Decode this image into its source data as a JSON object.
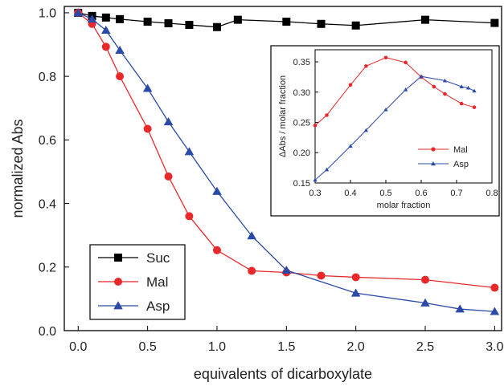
{
  "chart_data": [
    {
      "type": "line",
      "title": "",
      "xlabel": "equivalents of dicarboxylate",
      "ylabel": "normalized Abs",
      "xlim": [
        -0.1,
        3.05
      ],
      "ylim": [
        0.0,
        1.02
      ],
      "xticks": [
        "0.0",
        "0.5",
        "1.0",
        "1.5",
        "2.0",
        "2.5",
        "3.0"
      ],
      "yticks": [
        "0.0",
        "0.2",
        "0.4",
        "0.6",
        "0.8",
        "1.0"
      ],
      "grid": false,
      "legend_position": "bottom-left",
      "series": [
        {
          "name": "Suc",
          "color": "#000000",
          "marker": "square",
          "x": [
            0.0,
            0.1,
            0.2,
            0.3,
            0.5,
            0.65,
            0.8,
            1.0,
            1.15,
            1.5,
            1.75,
            2.0,
            2.5,
            3.0
          ],
          "y": [
            1.0,
            0.99,
            0.985,
            0.98,
            0.972,
            0.967,
            0.962,
            0.955,
            0.978,
            0.972,
            0.965,
            0.96,
            0.978,
            0.968
          ]
        },
        {
          "name": "Mal",
          "color": "#e8282a",
          "marker": "circle",
          "x": [
            0.0,
            0.1,
            0.2,
            0.3,
            0.5,
            0.65,
            0.8,
            1.0,
            1.25,
            1.5,
            1.75,
            2.0,
            2.5,
            3.0
          ],
          "y": [
            1.0,
            0.965,
            0.893,
            0.8,
            0.635,
            0.485,
            0.36,
            0.253,
            0.188,
            0.183,
            0.173,
            0.168,
            0.16,
            0.135
          ]
        },
        {
          "name": "Asp",
          "color": "#2b4aa8",
          "marker": "triangle",
          "x": [
            0.0,
            0.1,
            0.2,
            0.3,
            0.5,
            0.65,
            0.8,
            1.0,
            1.25,
            1.5,
            2.0,
            2.5,
            2.75,
            3.0
          ],
          "y": [
            1.0,
            0.98,
            0.945,
            0.882,
            0.762,
            0.657,
            0.563,
            0.438,
            0.298,
            0.19,
            0.118,
            0.087,
            0.068,
            0.06
          ]
        }
      ]
    },
    {
      "type": "line",
      "title": "",
      "xlabel": "molar fraction",
      "ylabel": "ΔAbs / molar fraction",
      "xlim": [
        0.3,
        0.8
      ],
      "ylim": [
        0.15,
        0.37
      ],
      "xticks": [
        "0.3",
        "0.4",
        "0.5",
        "0.6",
        "0.7",
        "0.8"
      ],
      "yticks": [
        "0.15",
        "0.20",
        "0.25",
        "0.30",
        "0.35"
      ],
      "grid": false,
      "legend_position": "bottom-right",
      "series": [
        {
          "name": "Mal",
          "color": "#e8282a",
          "marker": "circle",
          "x": [
            0.3,
            0.333,
            0.4,
            0.444,
            0.5,
            0.556,
            0.6,
            0.636,
            0.667,
            0.714,
            0.75
          ],
          "y": [
            0.245,
            0.262,
            0.312,
            0.343,
            0.357,
            0.349,
            0.325,
            0.309,
            0.297,
            0.281,
            0.275
          ]
        },
        {
          "name": "Asp",
          "color": "#2b4aa8",
          "marker": "triangle",
          "x": [
            0.3,
            0.333,
            0.4,
            0.444,
            0.5,
            0.556,
            0.6,
            0.667,
            0.714,
            0.733,
            0.75
          ],
          "y": [
            0.155,
            0.172,
            0.211,
            0.237,
            0.271,
            0.304,
            0.326,
            0.319,
            0.309,
            0.307,
            0.302
          ]
        }
      ]
    }
  ]
}
